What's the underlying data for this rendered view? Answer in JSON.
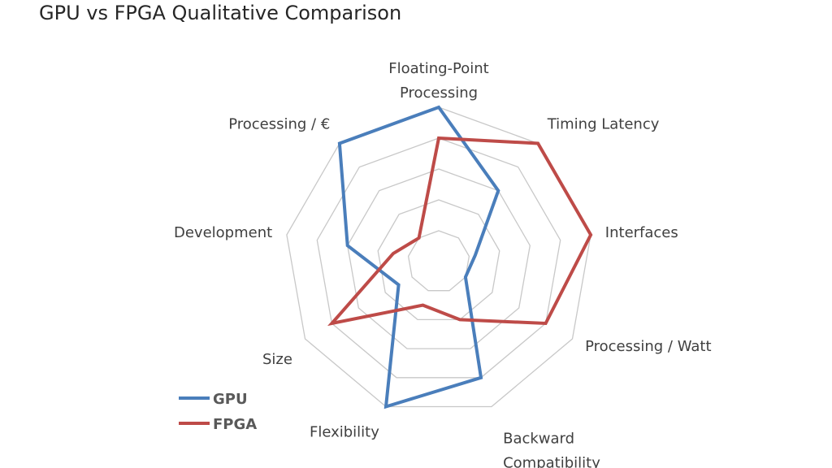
{
  "title": "GPU vs FPGA Qualitative Comparison",
  "chart_data": {
    "type": "radar",
    "title": "GPU vs FPGA Qualitative Comparison",
    "axes": [
      [
        "Floating-Point",
        "Processing"
      ],
      [
        "Timing Latency"
      ],
      [
        "Interfaces"
      ],
      [
        "Processing / Watt"
      ],
      [
        "Backward",
        "Compatibility"
      ],
      [
        "Flexibility"
      ],
      [
        "Size"
      ],
      [
        "Development"
      ],
      [
        "Processing / €"
      ]
    ],
    "rlim": [
      0,
      5
    ],
    "levels": 5,
    "grid": true,
    "legend_position": "bottom-left",
    "series": [
      {
        "name": "GPU",
        "color": "#4a7ebb",
        "values": [
          5,
          3,
          1.2,
          1,
          4,
          5,
          1.5,
          3,
          5
        ]
      },
      {
        "name": "FPGA",
        "color": "#be4b48",
        "values": [
          4,
          5,
          5,
          4,
          2,
          1.5,
          4,
          1.5,
          1
        ]
      }
    ]
  }
}
